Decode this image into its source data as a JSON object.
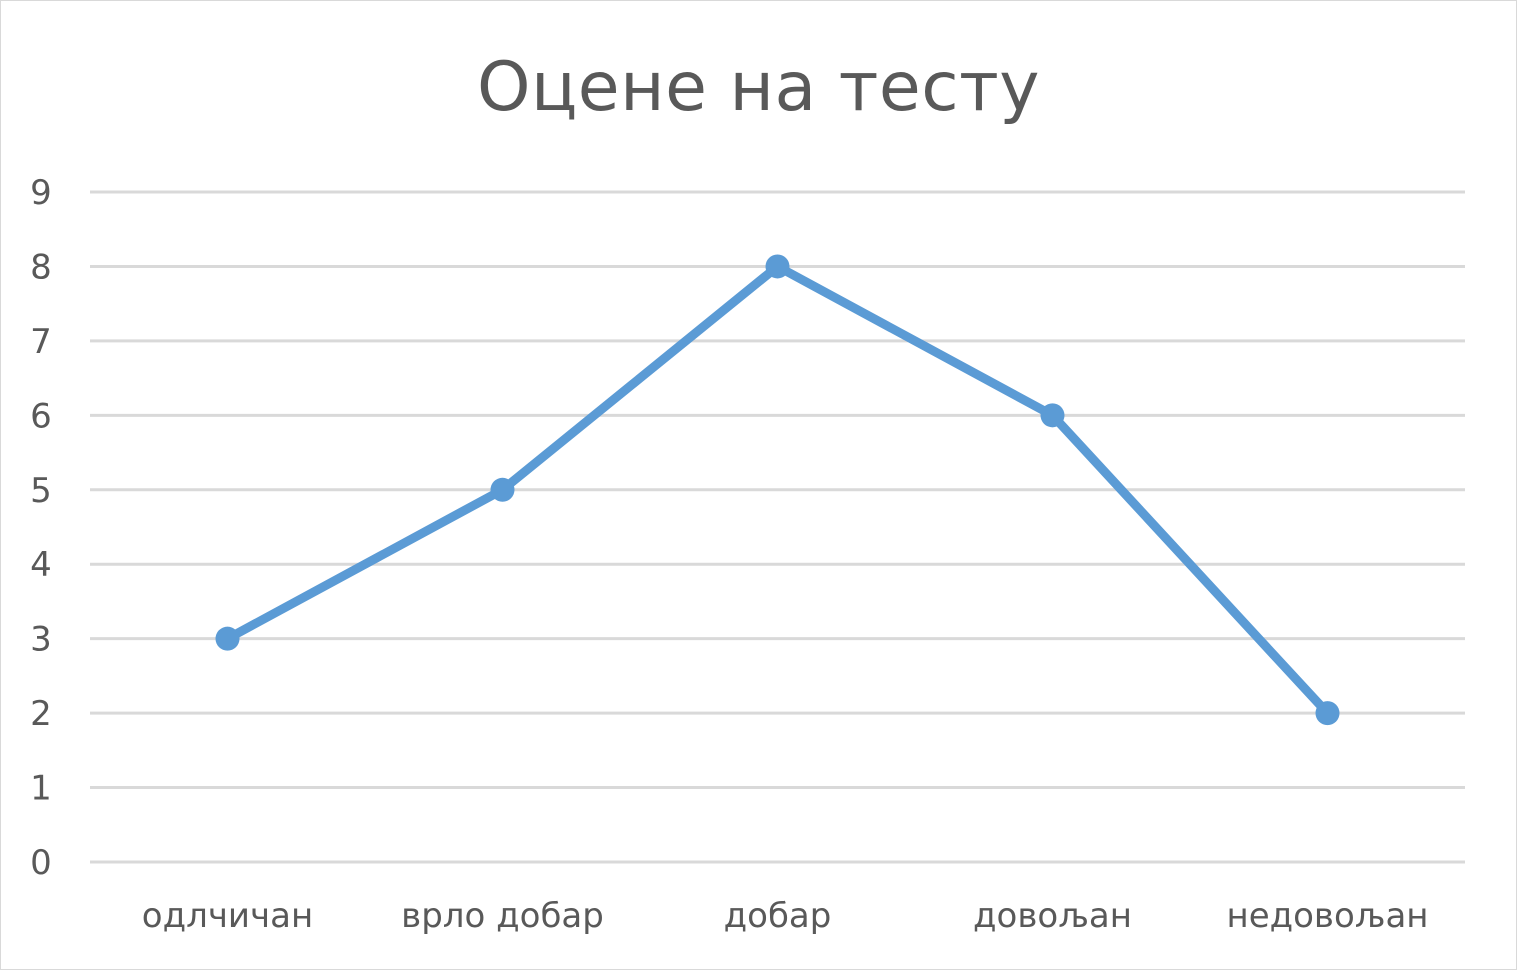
{
  "chart_data": {
    "type": "line",
    "title": "Оцене на тесту",
    "xlabel": "",
    "ylabel": "",
    "categories": [
      "одлчичан",
      "врло добар",
      "добар",
      "довољан",
      "недовољан"
    ],
    "series": [
      {
        "values": [
          3,
          5,
          8,
          6,
          2
        ]
      }
    ],
    "ylim": [
      0,
      9
    ],
    "yticks": [
      "0",
      "1",
      "2",
      "3",
      "4",
      "5",
      "6",
      "7",
      "8",
      "9"
    ],
    "grid": true,
    "legend": "none",
    "colors": {
      "line": "#5b9bd5",
      "grid": "#d9d9d9",
      "text": "#595959"
    }
  }
}
